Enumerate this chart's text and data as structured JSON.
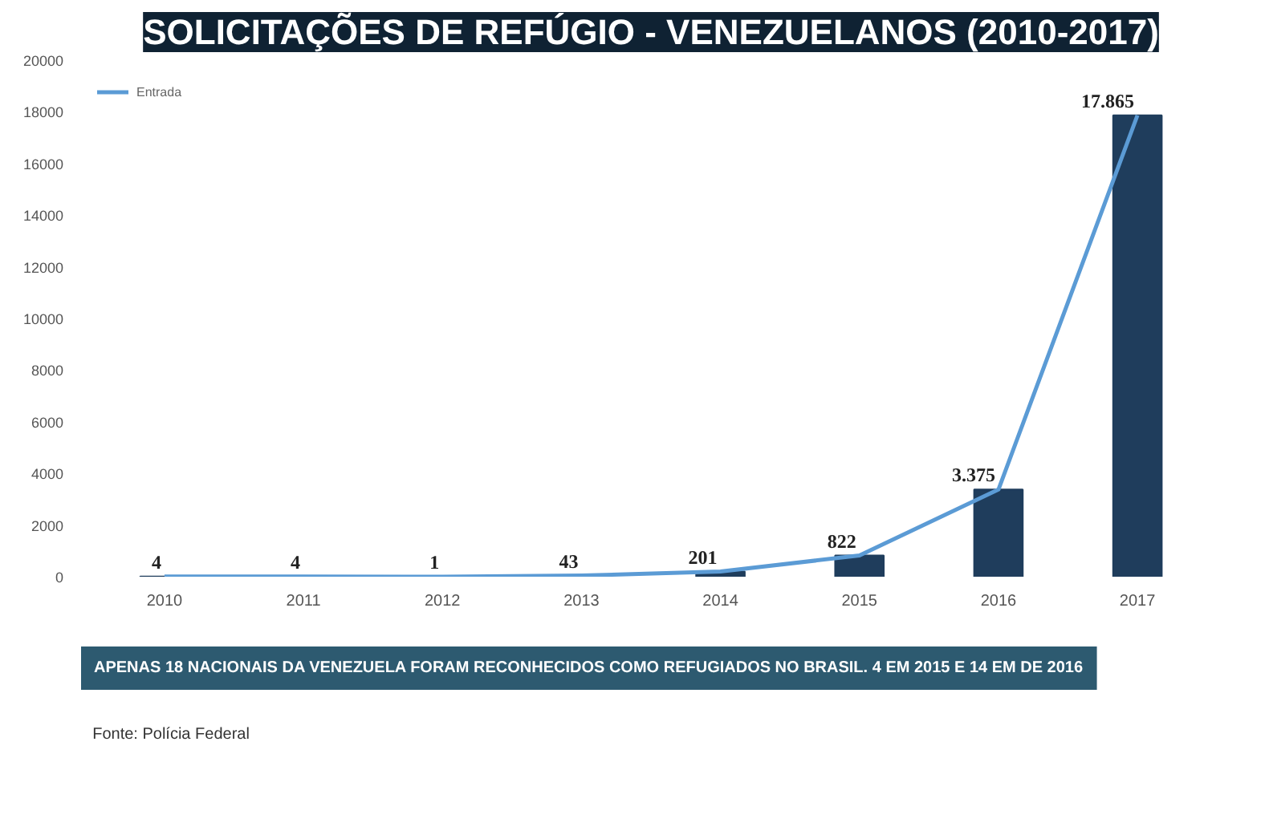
{
  "chart_data": {
    "type": "bar",
    "title": "SOLICITAÇÕES DE REFÚGIO - VENEZUELANOS (2010-2017)",
    "categories": [
      "2010",
      "2011",
      "2012",
      "2013",
      "2014",
      "2015",
      "2016",
      "2017"
    ],
    "series": [
      {
        "color": "#1f3d5c",
        "values": [
          4,
          4,
          1,
          43,
          201,
          822,
          3375,
          17865
        ],
        "value_labels": [
          "4",
          "4",
          "1",
          "43",
          "201",
          "822",
          "3.375",
          "17.865"
        ]
      },
      {
        "type": "line",
        "name": "Entrada",
        "color": "#5b9bd5",
        "values": [
          4,
          4,
          1,
          43,
          201,
          822,
          3375,
          17865
        ]
      }
    ],
    "ylim": [
      0,
      20000
    ],
    "yticks": [
      0,
      2000,
      4000,
      6000,
      8000,
      10000,
      12000,
      14000,
      16000,
      18000,
      20000
    ],
    "grid": false,
    "legend": "top left",
    "annotations": [
      "APENAS 18 NACIONAIS DA VENEZUELA FORAM RECONHECIDOS COMO REFUGIADOS NO BRASIL. 4 EM 2015 E 14 EM DE 2016",
      "Fonte: Polícia Federal"
    ]
  }
}
